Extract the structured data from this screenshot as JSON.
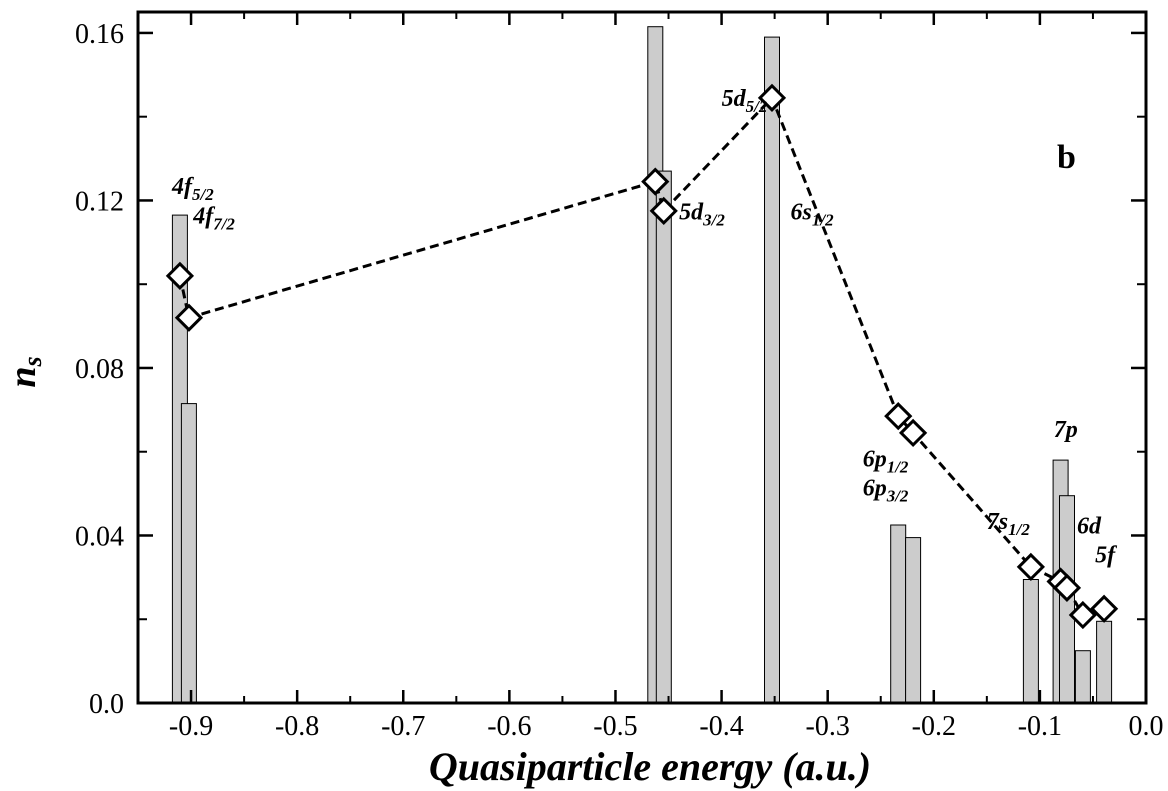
{
  "chart_data": {
    "type": "bar",
    "xlabel": "Quasiparticle energy (a.u.)",
    "ylabel": "n",
    "ylabel_sub": "s",
    "panel_label": "b",
    "xlim": [
      -0.95,
      0.0
    ],
    "ylim": [
      0.0,
      0.165
    ],
    "xticks": [
      -0.9,
      -0.8,
      -0.7,
      -0.6,
      -0.5,
      -0.4,
      -0.3,
      -0.2,
      -0.1,
      0.0
    ],
    "xtick_labels": [
      "-0.9",
      "-0.8",
      "-0.7",
      "-0.6",
      "-0.5",
      "-0.4",
      "-0.3",
      "-0.2",
      "-0.1",
      "0.0"
    ],
    "yticks": [
      0.0,
      0.04,
      0.08,
      0.12,
      0.16
    ],
    "ytick_labels": [
      "0.0",
      "0.04",
      "0.08",
      "0.12",
      "0.16"
    ],
    "bar_color": "#cccccc",
    "bars": [
      {
        "x": -0.9105,
        "value": 0.1165
      },
      {
        "x": -0.902,
        "value": 0.0715
      },
      {
        "x": -0.4625,
        "value": 0.1615
      },
      {
        "x": -0.4545,
        "value": 0.127
      },
      {
        "x": -0.3525,
        "value": 0.159
      },
      {
        "x": -0.2335,
        "value": 0.0425
      },
      {
        "x": -0.2195,
        "value": 0.0395
      },
      {
        "x": -0.1085,
        "value": 0.0295
      },
      {
        "x": -0.0805,
        "value": 0.058
      },
      {
        "x": -0.0745,
        "value": 0.0495
      },
      {
        "x": -0.0595,
        "value": 0.0125
      },
      {
        "x": -0.0395,
        "value": 0.0195
      }
    ],
    "series": [
      {
        "style": "dashed-diamond",
        "points": [
          {
            "x": -0.9105,
            "y": 0.102
          },
          {
            "x": -0.902,
            "y": 0.092
          },
          {
            "x": -0.4625,
            "y": 0.1245
          },
          {
            "x": -0.4545,
            "y": 0.1175
          },
          {
            "x": -0.3525,
            "y": 0.1445
          },
          {
            "x": -0.2335,
            "y": 0.0685
          },
          {
            "x": -0.2195,
            "y": 0.0645
          },
          {
            "x": -0.1085,
            "y": 0.0325
          },
          {
            "x": -0.0805,
            "y": 0.029
          },
          {
            "x": -0.0745,
            "y": 0.0275
          },
          {
            "x": -0.0595,
            "y": 0.021
          },
          {
            "x": -0.0395,
            "y": 0.0225
          }
        ]
      }
    ],
    "annotations": [
      {
        "main": "4f",
        "sub": "5/2",
        "x": -0.918,
        "y": 0.1215
      },
      {
        "main": "4f",
        "sub": "7/2",
        "x": -0.898,
        "y": 0.1145
      },
      {
        "main": "5d",
        "sub": "5/2",
        "x": -0.4,
        "y": 0.1425
      },
      {
        "main": "5d",
        "sub": "3/2",
        "x": -0.44,
        "y": 0.1155
      },
      {
        "main": "6s",
        "sub": "1/2",
        "x": -0.335,
        "y": 0.1155
      },
      {
        "main": "6p",
        "sub": "1/2",
        "x": -0.267,
        "y": 0.0565
      },
      {
        "main": "6p",
        "sub": "3/2",
        "x": -0.267,
        "y": 0.0495
      },
      {
        "main": "7s",
        "sub": "1/2",
        "x": -0.15,
        "y": 0.0415
      },
      {
        "main": "7p",
        "sub": "",
        "x": -0.087,
        "y": 0.0635
      },
      {
        "main": "6d",
        "sub": "",
        "x": -0.065,
        "y": 0.0405
      },
      {
        "main": "5f",
        "sub": "",
        "x": -0.048,
        "y": 0.0335
      }
    ]
  }
}
